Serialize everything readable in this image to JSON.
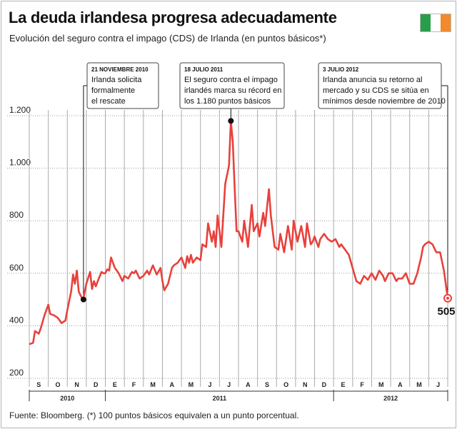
{
  "header": {
    "title": "La deuda irlandesa progresa adecuadamente",
    "subtitle": "Evolución del seguro contra el impago (CDS) de Irlanda (en puntos básicos*)",
    "flag_colors": [
      "#2a9d4a",
      "#ffffff",
      "#f08a2c"
    ]
  },
  "footer": {
    "source": "Fuente: Bloomberg. (*) 100 puntos básicos equivalen a un punto porcentual."
  },
  "colors": {
    "series": "#e8413c",
    "grid": "#999999",
    "annotation": "#111111"
  },
  "chart_data": {
    "type": "line",
    "title": "La deuda irlandesa progresa adecuadamente",
    "subtitle": "Evolución del seguro contra el impago (CDS) de Irlanda (en puntos básicos*)",
    "ylim": [
      200,
      1200
    ],
    "yticks": [
      "200",
      "400",
      "600",
      "800",
      "1.000",
      "1.200"
    ],
    "ytick_values": [
      200,
      400,
      600,
      800,
      1000,
      1200
    ],
    "months": [
      "S",
      "O",
      "N",
      "D",
      "E",
      "F",
      "M",
      "A",
      "M",
      "J",
      "J",
      "A",
      "S",
      "O",
      "N",
      "D",
      "E",
      "F",
      "M",
      "A",
      "M",
      "J"
    ],
    "years": [
      {
        "label": "2010",
        "start_month": 0,
        "end_month": 4
      },
      {
        "label": "2011",
        "start_month": 4,
        "end_month": 16
      },
      {
        "label": "2012",
        "start_month": 16,
        "end_month": 22
      }
    ],
    "grid": true,
    "series": [
      {
        "values": [
          [
            0.0,
            330
          ],
          [
            0.2,
            335
          ],
          [
            0.3,
            380
          ],
          [
            0.5,
            370
          ],
          [
            0.6,
            390
          ],
          [
            0.8,
            440
          ],
          [
            1.0,
            480
          ],
          [
            1.1,
            445
          ],
          [
            1.3,
            440
          ],
          [
            1.5,
            430
          ],
          [
            1.7,
            410
          ],
          [
            1.9,
            420
          ],
          [
            2.0,
            460
          ],
          [
            2.2,
            530
          ],
          [
            2.3,
            595
          ],
          [
            2.4,
            560
          ],
          [
            2.5,
            610
          ],
          [
            2.6,
            530
          ],
          [
            2.8,
            500
          ],
          [
            2.85,
            505
          ],
          [
            3.0,
            560
          ],
          [
            3.2,
            605
          ],
          [
            3.3,
            540
          ],
          [
            3.4,
            570
          ],
          [
            3.5,
            550
          ],
          [
            3.6,
            570
          ],
          [
            3.8,
            605
          ],
          [
            3.9,
            600
          ],
          [
            4.0,
            600
          ],
          [
            4.1,
            615
          ],
          [
            4.2,
            610
          ],
          [
            4.3,
            660
          ],
          [
            4.5,
            620
          ],
          [
            4.7,
            600
          ],
          [
            4.9,
            570
          ],
          [
            5.0,
            590
          ],
          [
            5.2,
            580
          ],
          [
            5.4,
            605
          ],
          [
            5.5,
            600
          ],
          [
            5.6,
            610
          ],
          [
            5.8,
            580
          ],
          [
            6.0,
            590
          ],
          [
            6.2,
            610
          ],
          [
            6.3,
            595
          ],
          [
            6.5,
            630
          ],
          [
            6.7,
            595
          ],
          [
            6.9,
            620
          ],
          [
            7.0,
            570
          ],
          [
            7.1,
            535
          ],
          [
            7.3,
            560
          ],
          [
            7.5,
            620
          ],
          [
            7.6,
            630
          ],
          [
            7.8,
            640
          ],
          [
            8.0,
            660
          ],
          [
            8.2,
            620
          ],
          [
            8.3,
            665
          ],
          [
            8.4,
            640
          ],
          [
            8.5,
            670
          ],
          [
            8.6,
            640
          ],
          [
            8.8,
            660
          ],
          [
            9.0,
            650
          ],
          [
            9.1,
            710
          ],
          [
            9.3,
            700
          ],
          [
            9.4,
            790
          ],
          [
            9.6,
            720
          ],
          [
            9.7,
            760
          ],
          [
            9.8,
            700
          ],
          [
            9.9,
            820
          ],
          [
            10.0,
            760
          ],
          [
            10.1,
            700
          ],
          [
            10.3,
            940
          ],
          [
            10.5,
            1010
          ],
          [
            10.6,
            1180
          ],
          [
            10.7,
            1100
          ],
          [
            10.8,
            920
          ],
          [
            10.9,
            760
          ],
          [
            11.0,
            760
          ],
          [
            11.2,
            720
          ],
          [
            11.3,
            800
          ],
          [
            11.5,
            700
          ],
          [
            11.7,
            860
          ],
          [
            11.8,
            760
          ],
          [
            12.0,
            790
          ],
          [
            12.1,
            740
          ],
          [
            12.3,
            830
          ],
          [
            12.4,
            780
          ],
          [
            12.6,
            920
          ],
          [
            12.7,
            820
          ],
          [
            12.9,
            700
          ],
          [
            13.1,
            690
          ],
          [
            13.2,
            750
          ],
          [
            13.4,
            680
          ],
          [
            13.6,
            780
          ],
          [
            13.8,
            690
          ],
          [
            13.9,
            800
          ],
          [
            14.1,
            720
          ],
          [
            14.3,
            780
          ],
          [
            14.5,
            700
          ],
          [
            14.6,
            790
          ],
          [
            14.8,
            710
          ],
          [
            14.9,
            720
          ],
          [
            15.0,
            740
          ],
          [
            15.2,
            700
          ],
          [
            15.3,
            730
          ],
          [
            15.5,
            750
          ],
          [
            15.7,
            730
          ],
          [
            15.9,
            720
          ],
          [
            16.1,
            730
          ],
          [
            16.3,
            700
          ],
          [
            16.4,
            710
          ],
          [
            16.6,
            690
          ],
          [
            16.8,
            670
          ],
          [
            17.0,
            620
          ],
          [
            17.2,
            570
          ],
          [
            17.4,
            560
          ],
          [
            17.6,
            590
          ],
          [
            17.8,
            575
          ],
          [
            18.0,
            600
          ],
          [
            18.2,
            575
          ],
          [
            18.4,
            610
          ],
          [
            18.6,
            590
          ],
          [
            18.7,
            570
          ],
          [
            18.9,
            600
          ],
          [
            19.1,
            600
          ],
          [
            19.3,
            570
          ],
          [
            19.4,
            580
          ],
          [
            19.6,
            580
          ],
          [
            19.8,
            600
          ],
          [
            20.0,
            560
          ],
          [
            20.2,
            560
          ],
          [
            20.4,
            600
          ],
          [
            20.5,
            630
          ],
          [
            20.6,
            660
          ],
          [
            20.7,
            700
          ],
          [
            20.8,
            710
          ],
          [
            21.0,
            720
          ],
          [
            21.2,
            710
          ],
          [
            21.4,
            680
          ],
          [
            21.6,
            680
          ],
          [
            21.8,
            610
          ],
          [
            22.0,
            505
          ]
        ]
      }
    ],
    "last_value_label": "505",
    "annotations": [
      {
        "head": "21 NOVIEMBRE 2010",
        "lines": [
          "Irlanda solicita",
          "formalmente",
          "el rescate"
        ],
        "x": 2.85,
        "y": 500
      },
      {
        "head": "18 JULIO 2011",
        "lines": [
          "El seguro contra el impago",
          "irlandés marca su récord en",
          "los 1.180 puntos básicos"
        ],
        "x": 10.6,
        "y": 1180
      },
      {
        "head": "3 JULIO 2012",
        "lines": [
          "Irlanda anuncia su retorno al",
          "mercado y su CDS se sitúa en",
          "mínimos desde noviembre de 2010"
        ],
        "x": 22.0,
        "y": 505
      }
    ]
  }
}
